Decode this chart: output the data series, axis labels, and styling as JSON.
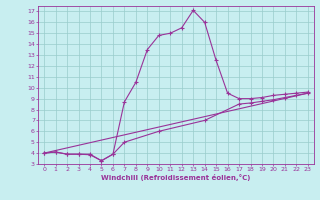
{
  "xlabel": "Windchill (Refroidissement éolien,°C)",
  "xlim": [
    -0.5,
    23.5
  ],
  "ylim": [
    3,
    17.5
  ],
  "yticks": [
    3,
    4,
    5,
    6,
    7,
    8,
    9,
    10,
    11,
    12,
    13,
    14,
    15,
    16,
    17
  ],
  "xticks": [
    0,
    1,
    2,
    3,
    4,
    5,
    6,
    7,
    8,
    9,
    10,
    11,
    12,
    13,
    14,
    15,
    16,
    17,
    18,
    19,
    20,
    21,
    22,
    23
  ],
  "bg_color": "#c8eef0",
  "grid_color": "#99cccc",
  "line_color": "#993399",
  "line1_x": [
    0,
    1,
    2,
    3,
    4,
    5,
    6,
    7,
    8,
    9,
    10,
    11,
    12,
    13,
    14,
    15,
    16,
    17,
    18,
    19,
    20,
    21,
    22,
    23
  ],
  "line1_y": [
    4.0,
    4.1,
    3.9,
    3.9,
    3.9,
    3.3,
    3.9,
    8.7,
    10.5,
    13.5,
    14.8,
    15.0,
    15.5,
    17.1,
    16.0,
    12.5,
    9.5,
    9.0,
    9.0,
    9.1,
    9.3,
    9.4,
    9.5,
    9.6
  ],
  "line2_x": [
    0,
    1,
    2,
    3,
    4,
    5,
    6,
    7,
    10,
    14,
    17,
    18,
    19,
    20,
    21,
    22,
    23
  ],
  "line2_y": [
    4.0,
    4.1,
    3.9,
    3.9,
    3.85,
    3.3,
    3.9,
    5.0,
    6.0,
    7.0,
    8.5,
    8.6,
    8.75,
    8.9,
    9.1,
    9.3,
    9.5
  ],
  "line3_x": [
    0,
    23
  ],
  "line3_y": [
    4.0,
    9.5
  ]
}
